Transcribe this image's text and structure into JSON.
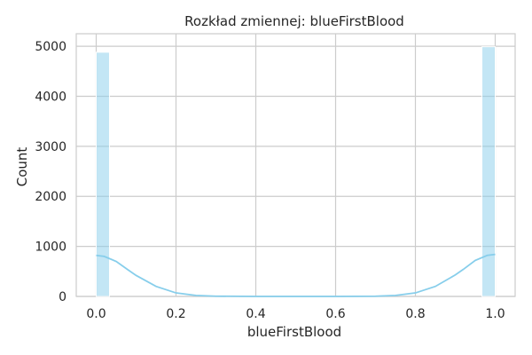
{
  "chart_data": {
    "type": "bar",
    "subtype": "histogram-with-kde",
    "title": "Rozkład zmiennej: blueFirstBlood",
    "xlabel": "blueFirstBlood",
    "ylabel": "Count",
    "xlim": [
      -0.05,
      1.05
    ],
    "ylim": [
      0,
      5250
    ],
    "xticks": [
      0.0,
      0.2,
      0.4,
      0.6,
      0.8,
      1.0
    ],
    "xtick_labels": [
      "0.0",
      "0.2",
      "0.4",
      "0.6",
      "0.8",
      "1.0"
    ],
    "yticks": [
      0,
      1000,
      2000,
      3000,
      4000,
      5000
    ],
    "ytick_labels": [
      "0",
      "1000",
      "2000",
      "3000",
      "4000",
      "5000"
    ],
    "grid": true,
    "bins": [
      {
        "x0": 0.0,
        "x1": 0.0333,
        "count": 4880
      },
      {
        "x0": 0.9667,
        "x1": 1.0,
        "count": 4990
      }
    ],
    "kde": {
      "x": [
        0.0,
        0.02,
        0.05,
        0.08,
        0.1,
        0.15,
        0.2,
        0.25,
        0.3,
        0.4,
        0.5,
        0.6,
        0.7,
        0.75,
        0.8,
        0.85,
        0.9,
        0.92,
        0.95,
        0.98,
        1.0
      ],
      "y": [
        820,
        800,
        700,
        530,
        420,
        200,
        70,
        20,
        5,
        0,
        0,
        0,
        5,
        20,
        70,
        200,
        430,
        540,
        720,
        820,
        840
      ]
    },
    "colors": {
      "bar_fill": "#87ceeb",
      "bar_opacity": 0.5,
      "kde_line": "#87ceeb",
      "grid": "#cccccc",
      "text": "#262626"
    }
  }
}
